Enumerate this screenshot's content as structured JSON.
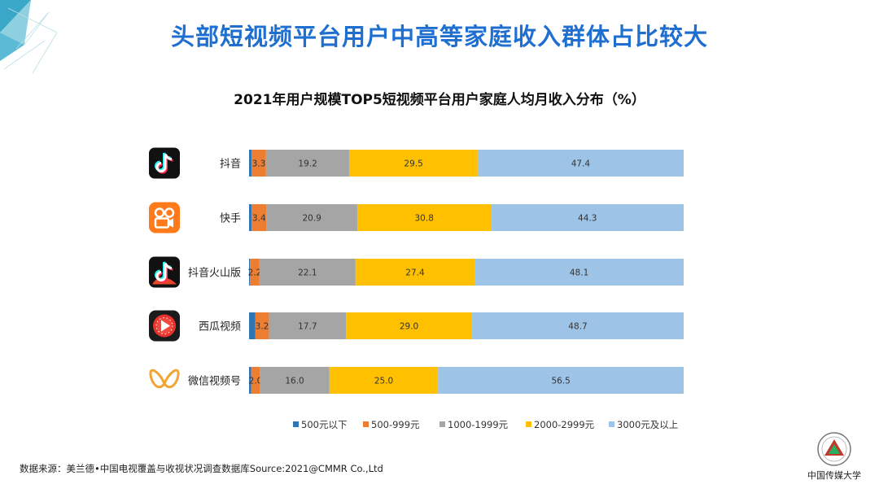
{
  "page": {
    "title": "头部短视频平台用户中高等家庭收入群体占比较大",
    "source": "数据来源：美兰德•中国电视覆盖与收视状况调查数据库Source:2021@CMMR Co.,Ltd"
  },
  "chart_data": {
    "type": "bar",
    "stacked": true,
    "orientation": "horizontal",
    "title": "2021年用户规模TOP5短视频平台用户家庭人均月收入分布（%）",
    "categories": [
      "抖音",
      "快手",
      "抖音火山版",
      "西瓜视频",
      "微信视频号"
    ],
    "category_icons": [
      "douyin-icon",
      "kuaishou-icon",
      "huoshan-icon",
      "xigua-icon",
      "wechat-channels-icon"
    ],
    "series": [
      {
        "name": "500元以下",
        "color": "#2e75b6",
        "values": [
          0.6,
          0.6,
          0.2,
          1.4,
          0.5
        ],
        "labels": [
          "",
          "",
          "",
          "",
          ""
        ]
      },
      {
        "name": "500-999元",
        "color": "#ed7d31",
        "values": [
          3.3,
          3.4,
          2.2,
          3.2,
          2.0
        ],
        "labels": [
          "3.3",
          "3.4",
          "2.2",
          "3.2",
          "2.0"
        ]
      },
      {
        "name": "1000-1999元",
        "color": "#a5a5a5",
        "values": [
          19.2,
          20.9,
          22.1,
          17.7,
          16.0
        ],
        "labels": [
          "19.2",
          "20.9",
          "22.1",
          "17.7",
          "16.0"
        ]
      },
      {
        "name": "2000-2999元",
        "color": "#ffc000",
        "values": [
          29.5,
          30.8,
          27.4,
          29.0,
          25.0
        ],
        "labels": [
          "29.5",
          "30.8",
          "27.4",
          "29.0",
          "25.0"
        ]
      },
      {
        "name": "3000元及以上",
        "color": "#9dc3e6",
        "values": [
          47.4,
          44.3,
          48.1,
          48.7,
          56.5
        ],
        "labels": [
          "47.4",
          "44.3",
          "48.1",
          "48.7",
          "56.5"
        ]
      }
    ],
    "xlim": [
      0,
      100
    ],
    "legend_position": "bottom",
    "grid": false
  }
}
